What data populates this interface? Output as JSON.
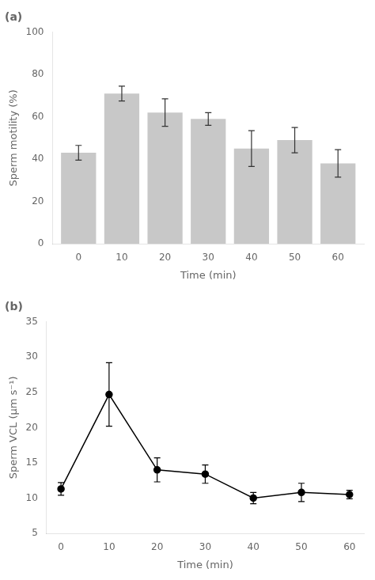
{
  "chart_data": [
    {
      "type": "bar",
      "title": "(a)",
      "x": [
        0,
        10,
        20,
        30,
        40,
        50,
        60
      ],
      "values": [
        43,
        71,
        62,
        59,
        45,
        49,
        38
      ],
      "yerr": [
        3.5,
        3.5,
        6.5,
        3.0,
        8.5,
        6.0,
        6.5
      ],
      "color": "#c8c8c8",
      "xlabel": "Time (min)",
      "ylabel": "Sperm motility (%)",
      "xlim": [
        -6,
        66
      ],
      "xticks": [
        0,
        10,
        20,
        30,
        40,
        50,
        60
      ],
      "ylim": [
        0,
        100
      ],
      "yticks": [
        0,
        20,
        40,
        60,
        80,
        100
      ],
      "grid": false
    },
    {
      "type": "line",
      "title": "(b)",
      "x": [
        0,
        10,
        20,
        30,
        40,
        50,
        60
      ],
      "values": [
        11.3,
        24.7,
        14.0,
        13.4,
        10.0,
        10.8,
        10.5
      ],
      "yerr": [
        0.9,
        4.5,
        1.7,
        1.3,
        0.8,
        1.3,
        0.6
      ],
      "color": "#000000",
      "marker": "circle",
      "xlabel": "Time (min)",
      "ylabel": "Sperm VCL (μm s⁻¹)",
      "xlim": [
        -3,
        63
      ],
      "xticks": [
        0,
        10,
        20,
        30,
        40,
        50,
        60
      ],
      "ylim": [
        5,
        35
      ],
      "yticks": [
        5,
        10,
        15,
        20,
        25,
        30,
        35
      ],
      "grid": false
    }
  ]
}
